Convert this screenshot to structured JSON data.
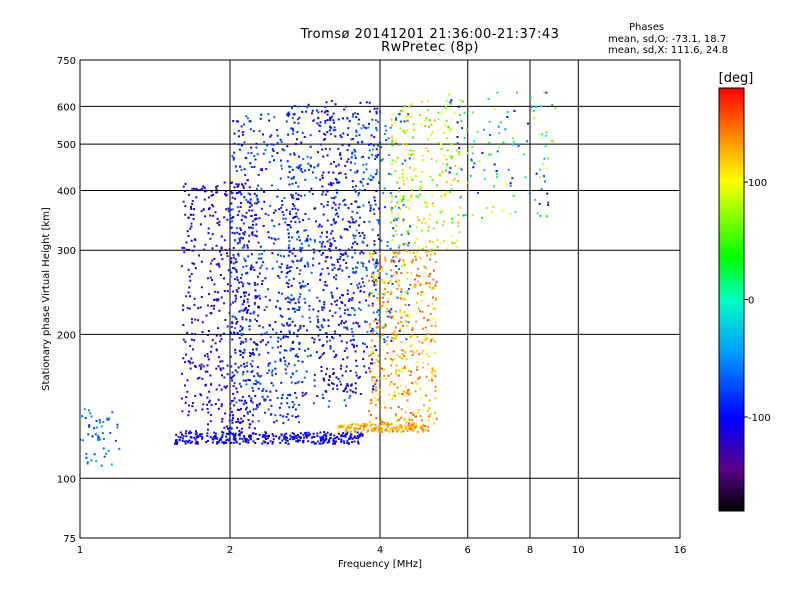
{
  "chart_data": {
    "type": "scatter",
    "title": "Tromsø 20141201 21:36:00-21:37:43",
    "subtitle": "RwPretec (8p)",
    "xlabel": "Frequency [MHz]",
    "ylabel": "Stationary phase Virtual Height [km]",
    "xscale": "log",
    "yscale": "log",
    "xlim": [
      1,
      16
    ],
    "ylim": [
      75,
      750
    ],
    "xticks": [
      1,
      2,
      4,
      6,
      8,
      10,
      16
    ],
    "xtick_labels": [
      "1",
      "2",
      "4",
      "6",
      "8",
      "10",
      "16"
    ],
    "yticks": [
      75,
      100,
      200,
      300,
      400,
      500,
      600,
      750
    ],
    "ytick_labels": [
      "75",
      "100",
      "200",
      "300",
      "400",
      "500",
      "600",
      "750"
    ],
    "grid": true,
    "legend_position": "top-right",
    "legend": {
      "title": "Phases",
      "line_o": "mean, sd,O: -73.1, 18.7",
      "line_x": "mean, sd,X: 111.6, 24.8"
    },
    "colorbar": {
      "label": "[deg]",
      "range": [
        -180,
        180
      ],
      "ticks": [
        100,
        0,
        -100
      ],
      "tick_labels": [
        "100",
        "0",
        "-100"
      ],
      "colormap": "rainbow"
    },
    "traces": [
      {
        "x_range": [
          1.55,
          3.7
        ],
        "y_range": [
          118,
          125
        ],
        "phase": [
          -120,
          -90
        ],
        "count": 340
      },
      {
        "x_range": [
          3.3,
          5.0
        ],
        "y_range": [
          125,
          130
        ],
        "phase": [
          110,
          150
        ],
        "count": 160
      },
      {
        "x_range": [
          1.6,
          2.3
        ],
        "y_range": [
          125,
          420
        ],
        "phase": [
          -130,
          -90
        ],
        "count": 520
      },
      {
        "x_range": [
          2.0,
          2.8
        ],
        "y_range": [
          130,
          580
        ],
        "phase": [
          -110,
          -60
        ],
        "count": 520
      },
      {
        "x_range": [
          2.6,
          3.6
        ],
        "y_range": [
          140,
          620
        ],
        "phase": [
          -120,
          -60
        ],
        "count": 420
      },
      {
        "x_range": [
          3.0,
          4.0
        ],
        "y_range": [
          150,
          620
        ],
        "phase": [
          -130,
          -90
        ],
        "count": 300
      },
      {
        "x_range": [
          3.5,
          4.6
        ],
        "y_range": [
          190,
          600
        ],
        "phase": [
          -90,
          -40
        ],
        "count": 200
      },
      {
        "x_range": [
          3.8,
          5.2
        ],
        "y_range": [
          130,
          300
        ],
        "phase": [
          100,
          160
        ],
        "count": 420
      },
      {
        "x_range": [
          4.2,
          5.8
        ],
        "y_range": [
          300,
          620
        ],
        "phase": [
          40,
          130
        ],
        "count": 220
      },
      {
        "x_range": [
          5.5,
          9.0
        ],
        "y_range": [
          350,
          650
        ],
        "phase": [
          -130,
          120
        ],
        "count": 130
      },
      {
        "x_range": [
          1.0,
          1.2
        ],
        "y_range": [
          105,
          140
        ],
        "phase": [
          -90,
          -40
        ],
        "count": 50
      }
    ]
  }
}
